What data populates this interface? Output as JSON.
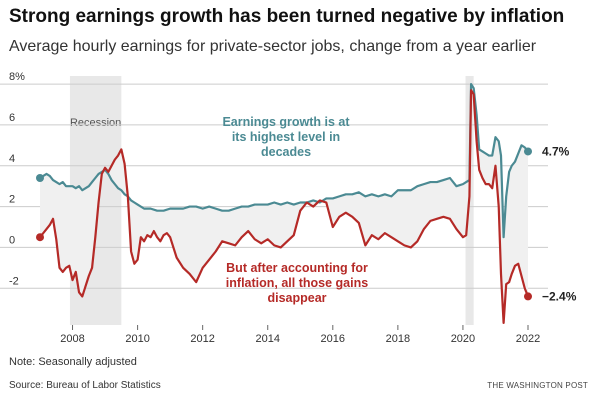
{
  "title": "Strong earnings growth has been turned negative by inflation",
  "subtitle": "Average hourly earnings for private-sector jobs, change from a year earlier",
  "note": "Note: Seasonally adjusted",
  "source": "Source: Bureau of Labor Statistics",
  "credit": "THE WASHINGTON POST",
  "colors": {
    "nominal": "#4b8a93",
    "real": "#b52a27",
    "fill": "#f0f0f0",
    "recession": "#e8e8e8",
    "grid": "#cccccc"
  },
  "chart_data": {
    "type": "line",
    "xlim": [
      2007,
      2022
    ],
    "ylim": [
      -3.8,
      8.2
    ],
    "y_ticks": [
      -2,
      0,
      2,
      4,
      6,
      8
    ],
    "y_tick_labels": [
      "-2",
      "0",
      "2",
      "4",
      "6",
      "8%"
    ],
    "x_ticks": [
      2008,
      2010,
      2012,
      2014,
      2016,
      2018,
      2020,
      2022
    ],
    "x_tick_labels": [
      "2008",
      "2010",
      "2012",
      "2014",
      "2016",
      "2018",
      "2020",
      "2022"
    ],
    "grid": true,
    "recessions": [
      {
        "start": 2007.92,
        "end": 2009.5,
        "label": "Recession"
      },
      {
        "start": 2020.08,
        "end": 2020.33,
        "label": ""
      }
    ],
    "series": [
      {
        "key": "nominal",
        "values": [
          [
            2007.0,
            3.4
          ],
          [
            2007.1,
            3.5
          ],
          [
            2007.2,
            3.6
          ],
          [
            2007.3,
            3.5
          ],
          [
            2007.4,
            3.3
          ],
          [
            2007.5,
            3.2
          ],
          [
            2007.6,
            3.1
          ],
          [
            2007.7,
            3.2
          ],
          [
            2007.8,
            3.0
          ],
          [
            2007.9,
            3.0
          ],
          [
            2008.0,
            3.0
          ],
          [
            2008.1,
            2.9
          ],
          [
            2008.2,
            3.0
          ],
          [
            2008.3,
            2.8
          ],
          [
            2008.4,
            2.9
          ],
          [
            2008.5,
            3.0
          ],
          [
            2008.6,
            3.2
          ],
          [
            2008.7,
            3.4
          ],
          [
            2008.8,
            3.6
          ],
          [
            2008.9,
            3.7
          ],
          [
            2009.0,
            3.8
          ],
          [
            2009.1,
            3.6
          ],
          [
            2009.2,
            3.3
          ],
          [
            2009.3,
            3.1
          ],
          [
            2009.4,
            2.9
          ],
          [
            2009.5,
            2.8
          ],
          [
            2009.6,
            2.6
          ],
          [
            2009.7,
            2.5
          ],
          [
            2009.8,
            2.3
          ],
          [
            2009.9,
            2.2
          ],
          [
            2010.0,
            2.1
          ],
          [
            2010.2,
            1.9
          ],
          [
            2010.4,
            1.9
          ],
          [
            2010.6,
            1.8
          ],
          [
            2010.8,
            1.8
          ],
          [
            2011.0,
            1.9
          ],
          [
            2011.2,
            1.9
          ],
          [
            2011.4,
            1.9
          ],
          [
            2011.6,
            2.0
          ],
          [
            2011.8,
            2.0
          ],
          [
            2012.0,
            1.9
          ],
          [
            2012.2,
            2.0
          ],
          [
            2012.4,
            1.9
          ],
          [
            2012.6,
            1.8
          ],
          [
            2012.8,
            1.8
          ],
          [
            2013.0,
            1.9
          ],
          [
            2013.2,
            2.0
          ],
          [
            2013.4,
            2.0
          ],
          [
            2013.6,
            2.1
          ],
          [
            2013.8,
            2.1
          ],
          [
            2014.0,
            2.1
          ],
          [
            2014.2,
            2.2
          ],
          [
            2014.4,
            2.1
          ],
          [
            2014.6,
            2.2
          ],
          [
            2014.8,
            2.1
          ],
          [
            2015.0,
            2.2
          ],
          [
            2015.2,
            2.2
          ],
          [
            2015.4,
            2.3
          ],
          [
            2015.6,
            2.2
          ],
          [
            2015.8,
            2.4
          ],
          [
            2016.0,
            2.4
          ],
          [
            2016.2,
            2.5
          ],
          [
            2016.4,
            2.6
          ],
          [
            2016.6,
            2.6
          ],
          [
            2016.8,
            2.7
          ],
          [
            2017.0,
            2.5
          ],
          [
            2017.2,
            2.6
          ],
          [
            2017.4,
            2.5
          ],
          [
            2017.6,
            2.6
          ],
          [
            2017.8,
            2.5
          ],
          [
            2018.0,
            2.8
          ],
          [
            2018.2,
            2.8
          ],
          [
            2018.4,
            2.8
          ],
          [
            2018.6,
            3.0
          ],
          [
            2018.8,
            3.1
          ],
          [
            2019.0,
            3.2
          ],
          [
            2019.2,
            3.2
          ],
          [
            2019.4,
            3.3
          ],
          [
            2019.6,
            3.4
          ],
          [
            2019.8,
            3.0
          ],
          [
            2020.0,
            3.1
          ],
          [
            2020.1,
            3.2
          ],
          [
            2020.2,
            3.3
          ],
          [
            2020.25,
            8.0
          ],
          [
            2020.33,
            7.8
          ],
          [
            2020.42,
            6.5
          ],
          [
            2020.5,
            4.8
          ],
          [
            2020.6,
            4.7
          ],
          [
            2020.7,
            4.6
          ],
          [
            2020.8,
            4.5
          ],
          [
            2020.9,
            4.5
          ],
          [
            2021.0,
            5.4
          ],
          [
            2021.1,
            5.2
          ],
          [
            2021.17,
            4.5
          ],
          [
            2021.25,
            0.5
          ],
          [
            2021.33,
            2.5
          ],
          [
            2021.42,
            3.7
          ],
          [
            2021.5,
            4.0
          ],
          [
            2021.6,
            4.2
          ],
          [
            2021.7,
            4.6
          ],
          [
            2021.8,
            5.0
          ],
          [
            2021.9,
            4.9
          ],
          [
            2022.0,
            4.7
          ]
        ]
      },
      {
        "key": "real",
        "values": [
          [
            2007.0,
            0.5
          ],
          [
            2007.1,
            0.7
          ],
          [
            2007.2,
            0.9
          ],
          [
            2007.3,
            1.1
          ],
          [
            2007.4,
            1.4
          ],
          [
            2007.5,
            0.4
          ],
          [
            2007.6,
            -1.0
          ],
          [
            2007.7,
            -1.2
          ],
          [
            2007.8,
            -1.0
          ],
          [
            2007.9,
            -0.9
          ],
          [
            2008.0,
            -1.6
          ],
          [
            2008.1,
            -1.2
          ],
          [
            2008.2,
            -2.2
          ],
          [
            2008.3,
            -2.4
          ],
          [
            2008.4,
            -1.9
          ],
          [
            2008.5,
            -1.4
          ],
          [
            2008.6,
            -1.0
          ],
          [
            2008.7,
            0.5
          ],
          [
            2008.8,
            2.2
          ],
          [
            2008.9,
            3.6
          ],
          [
            2009.0,
            3.9
          ],
          [
            2009.1,
            3.7
          ],
          [
            2009.2,
            4.0
          ],
          [
            2009.3,
            4.3
          ],
          [
            2009.4,
            4.5
          ],
          [
            2009.5,
            4.8
          ],
          [
            2009.6,
            4.1
          ],
          [
            2009.7,
            2.5
          ],
          [
            2009.8,
            -0.2
          ],
          [
            2009.9,
            -0.8
          ],
          [
            2010.0,
            -0.6
          ],
          [
            2010.1,
            0.5
          ],
          [
            2010.2,
            0.3
          ],
          [
            2010.3,
            0.6
          ],
          [
            2010.4,
            0.5
          ],
          [
            2010.5,
            0.8
          ],
          [
            2010.6,
            0.5
          ],
          [
            2010.7,
            0.3
          ],
          [
            2010.8,
            0.6
          ],
          [
            2010.9,
            0.7
          ],
          [
            2011.0,
            0.5
          ],
          [
            2011.2,
            -0.5
          ],
          [
            2011.4,
            -1.0
          ],
          [
            2011.6,
            -1.3
          ],
          [
            2011.8,
            -1.7
          ],
          [
            2012.0,
            -1.0
          ],
          [
            2012.2,
            -0.6
          ],
          [
            2012.4,
            -0.2
          ],
          [
            2012.6,
            0.3
          ],
          [
            2012.8,
            0.2
          ],
          [
            2013.0,
            0.1
          ],
          [
            2013.2,
            0.5
          ],
          [
            2013.4,
            0.8
          ],
          [
            2013.6,
            0.4
          ],
          [
            2013.8,
            0.2
          ],
          [
            2014.0,
            0.4
          ],
          [
            2014.2,
            0.1
          ],
          [
            2014.4,
            0.0
          ],
          [
            2014.6,
            0.3
          ],
          [
            2014.8,
            0.6
          ],
          [
            2015.0,
            1.8
          ],
          [
            2015.2,
            2.2
          ],
          [
            2015.4,
            2.0
          ],
          [
            2015.6,
            2.3
          ],
          [
            2015.8,
            2.2
          ],
          [
            2016.0,
            1.0
          ],
          [
            2016.2,
            1.5
          ],
          [
            2016.4,
            1.7
          ],
          [
            2016.6,
            1.5
          ],
          [
            2016.8,
            1.2
          ],
          [
            2017.0,
            0.1
          ],
          [
            2017.2,
            0.6
          ],
          [
            2017.4,
            0.4
          ],
          [
            2017.6,
            0.7
          ],
          [
            2017.8,
            0.5
          ],
          [
            2018.0,
            0.3
          ],
          [
            2018.2,
            0.1
          ],
          [
            2018.4,
            0.0
          ],
          [
            2018.6,
            0.3
          ],
          [
            2018.8,
            0.9
          ],
          [
            2019.0,
            1.3
          ],
          [
            2019.2,
            1.4
          ],
          [
            2019.4,
            1.5
          ],
          [
            2019.6,
            1.4
          ],
          [
            2019.8,
            0.9
          ],
          [
            2020.0,
            0.5
          ],
          [
            2020.1,
            0.6
          ],
          [
            2020.2,
            2.5
          ],
          [
            2020.25,
            7.7
          ],
          [
            2020.33,
            7.5
          ],
          [
            2020.42,
            5.2
          ],
          [
            2020.5,
            3.8
          ],
          [
            2020.6,
            3.4
          ],
          [
            2020.7,
            3.1
          ],
          [
            2020.8,
            3.1
          ],
          [
            2020.9,
            2.9
          ],
          [
            2021.0,
            4.0
          ],
          [
            2021.1,
            2.0
          ],
          [
            2021.17,
            -1.3
          ],
          [
            2021.25,
            -3.7
          ],
          [
            2021.33,
            -1.8
          ],
          [
            2021.42,
            -1.7
          ],
          [
            2021.5,
            -1.3
          ],
          [
            2021.6,
            -0.9
          ],
          [
            2021.7,
            -0.8
          ],
          [
            2021.8,
            -1.4
          ],
          [
            2021.9,
            -2.0
          ],
          [
            2022.0,
            -2.4
          ]
        ]
      }
    ],
    "end_labels": {
      "nominal": "4.7%",
      "real": "−2.4%"
    },
    "annotations": {
      "nominal": [
        "Earnings growth is at",
        "its highest level in",
        "decades"
      ],
      "real": [
        "But after accounting for",
        "inflation, all those gains",
        "disappear"
      ]
    }
  }
}
